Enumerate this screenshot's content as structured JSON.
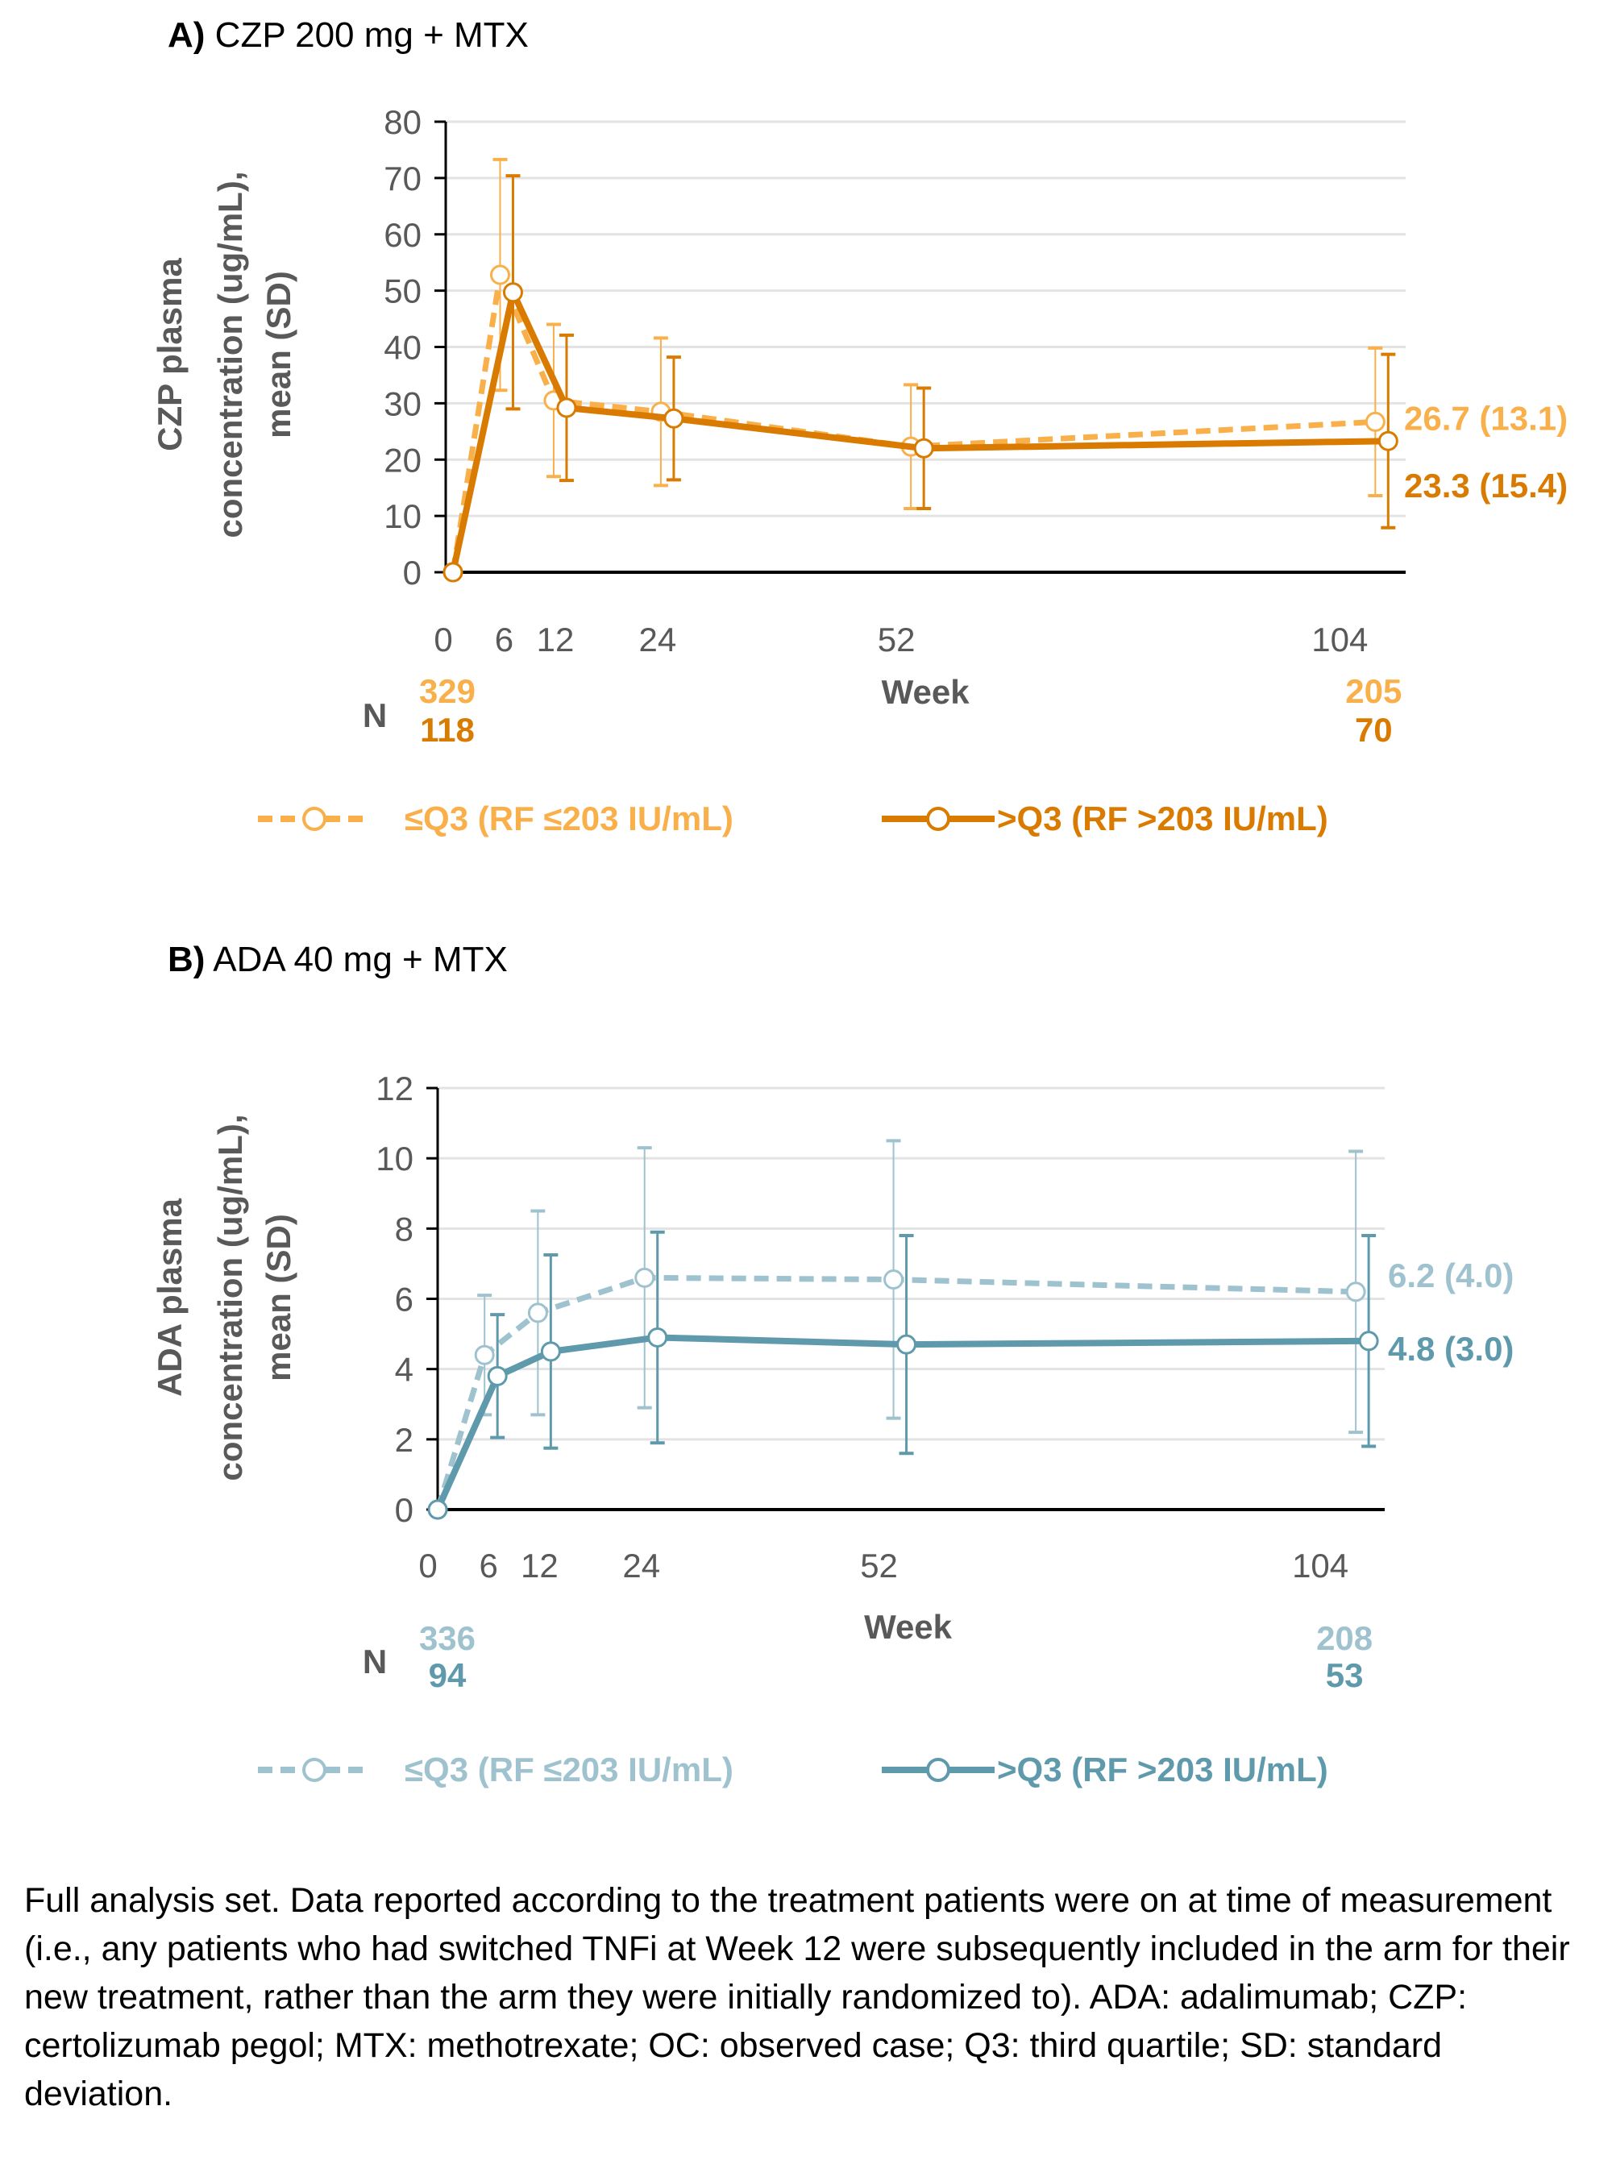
{
  "chart_data": [
    {
      "type": "line",
      "panel_label": "A)",
      "title": "CZP 200 mg + MTX",
      "xlabel": "Week",
      "ylabel_lines": [
        "CZP plasma",
        "concentration (ug/mL),",
        "mean (SD)"
      ],
      "x_ticks": [
        0,
        6,
        12,
        24,
        52,
        104
      ],
      "y_ticks": [
        0,
        10,
        20,
        30,
        40,
        50,
        60,
        70,
        80
      ],
      "ylim": [
        0,
        80
      ],
      "grid": "horizontal",
      "legend_placement": "bottom",
      "n_label": "N",
      "series": [
        {
          "name": "≤Q3 (RF ≤203 IU/mL)",
          "style": "dashed",
          "color": "#F9B04B",
          "x": [
            0,
            6,
            12,
            24,
            52,
            104
          ],
          "y": [
            0,
            52.8,
            30.5,
            28.5,
            22.3,
            26.7
          ],
          "sd": [
            0,
            20.5,
            13.5,
            13.1,
            11.0,
            13.1
          ],
          "n": [
            "329",
            "205"
          ],
          "end_label": "26.7 (13.1)"
        },
        {
          "name": ">Q3 (RF >203 IU/mL)",
          "style": "solid",
          "color": "#D97B00",
          "x": [
            0,
            6,
            12,
            24,
            52,
            104
          ],
          "y": [
            0,
            49.7,
            29.2,
            27.3,
            22.0,
            23.3
          ],
          "sd": [
            0,
            20.7,
            12.9,
            10.9,
            10.7,
            15.4
          ],
          "n": [
            "118",
            "70"
          ],
          "end_label": "23.3 (15.4)"
        }
      ]
    },
    {
      "type": "line",
      "panel_label": "B)",
      "title": "ADA 40 mg + MTX",
      "xlabel": "Week",
      "ylabel_lines": [
        "ADA plasma",
        "concentration (ug/mL),",
        "mean (SD)"
      ],
      "x_ticks": [
        0,
        6,
        12,
        24,
        52,
        104
      ],
      "y_ticks": [
        0,
        2,
        4,
        6,
        8,
        10,
        12
      ],
      "ylim": [
        0,
        12
      ],
      "grid": "horizontal",
      "legend_placement": "bottom",
      "n_label": "N",
      "series": [
        {
          "name": "≤Q3 (RF ≤203 IU/mL)",
          "style": "dashed",
          "color": "#9FC2CF",
          "x": [
            0,
            6,
            12,
            24,
            52,
            104
          ],
          "y": [
            0,
            4.4,
            5.6,
            6.6,
            6.55,
            6.2
          ],
          "sd": [
            0,
            1.7,
            2.9,
            3.7,
            3.95,
            4.0
          ],
          "n": [
            "336",
            "208"
          ],
          "end_label": "6.2 (4.0)"
        },
        {
          "name": ">Q3 (RF >203 IU/mL)",
          "style": "solid",
          "color": "#5F9AAC",
          "x": [
            0,
            6,
            12,
            24,
            52,
            104
          ],
          "y": [
            0,
            3.8,
            4.5,
            4.9,
            4.7,
            4.8
          ],
          "sd": [
            0,
            1.75,
            2.75,
            3.0,
            3.1,
            3.0
          ],
          "n": [
            "94",
            "53"
          ],
          "end_label": "4.8 (3.0)"
        }
      ]
    }
  ],
  "footnote": "Full analysis set. Data reported according to the treatment patients were on at time of measurement (i.e., any patients who had switched TNFi at Week 12 were subsequently included in the arm for their new treatment, rather than the arm they were initially randomized to). ADA: adalimumab; CZP: certolizumab pegol; MTX: methotrexate; OC: observed case; Q3: third quartile; SD: standard deviation."
}
